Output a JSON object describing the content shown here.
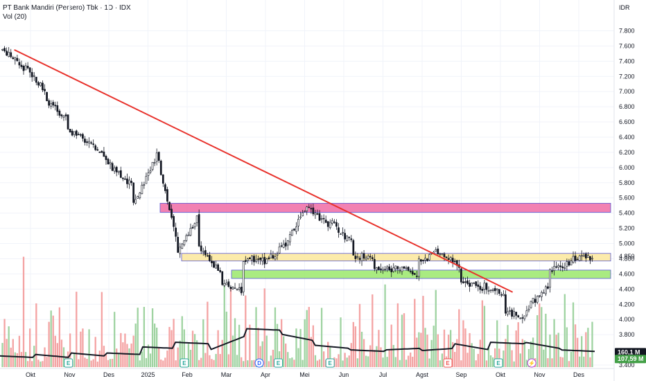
{
  "header": {
    "title": "PT Bank Mandiri (Persero) Tbk · 1D · IDX",
    "volume_label": "Vol (20)",
    "currency": "IDR"
  },
  "chart_data": {
    "type": "candlestick",
    "ylim": [
      3400,
      7950
    ],
    "y_ticks": [
      7800,
      7600,
      7400,
      7200,
      7000,
      6800,
      6600,
      6400,
      6200,
      6000,
      5800,
      5600,
      5400,
      5200,
      5000,
      4800,
      4600,
      4400,
      4200,
      4000,
      3800,
      3400
    ],
    "x_ticks": [
      "Okt",
      "Nov",
      "Des",
      "2025",
      "Feb",
      "Mar",
      "Apr",
      "Mei",
      "Jun",
      "Jul",
      "Agst",
      "Sep",
      "Okt",
      "Nov",
      "Des"
    ],
    "price_keypoints": [
      [
        7550,
        7300
      ],
      [
        7350,
        7000
      ],
      [
        6850,
        6650
      ],
      [
        6500,
        6300
      ],
      [
        6300,
        6050
      ],
      [
        6000,
        5750
      ],
      [
        5550,
        6100
      ],
      [
        6250,
        5000
      ],
      [
        4850,
        5400
      ],
      [
        4950,
        4600
      ],
      [
        4500,
        4350
      ],
      [
        4750,
        4850
      ],
      [
        4750,
        5000
      ],
      [
        5000,
        5550
      ],
      [
        5500,
        5200
      ],
      [
        5300,
        5000
      ],
      [
        4850,
        4800
      ],
      [
        4700,
        4650
      ],
      [
        4700,
        4600
      ],
      [
        4750,
        4900
      ],
      [
        4850,
        4700
      ],
      [
        4500,
        4400
      ],
      [
        4450,
        4350
      ],
      [
        4100,
        4050
      ],
      [
        4150,
        4450
      ],
      [
        4650,
        4750
      ],
      [
        4800,
        4830
      ]
    ],
    "volume_ma_keypoints": [
      [
        3520,
        3500
      ],
      [
        3540,
        3500
      ],
      [
        3560,
        3520
      ],
      [
        3560,
        3540
      ],
      [
        3640,
        3620
      ],
      [
        3700,
        3680
      ],
      [
        3600,
        3780
      ],
      [
        3880,
        3860
      ],
      [
        3810,
        3720
      ],
      [
        3660,
        3620
      ],
      [
        3600,
        3580
      ],
      [
        3600,
        3620
      ],
      [
        3590,
        3620
      ],
      [
        3680,
        3600
      ],
      [
        3700,
        3680
      ],
      [
        3700,
        3620
      ],
      [
        3600,
        3580
      ]
    ],
    "trendline": {
      "from": [
        0.024,
        7550
      ],
      "to": [
        0.862,
        4360
      ],
      "color": "#e8312b"
    },
    "zones": [
      {
        "name": "resistance",
        "y_top": 5530,
        "y_bottom": 5410,
        "color": "#f06ba4"
      },
      {
        "name": "pivot",
        "y_top": 4870,
        "y_bottom": 4770,
        "color": "#fbe89b"
      },
      {
        "name": "support",
        "y_top": 4650,
        "y_bottom": 4540,
        "color": "#9be86b"
      }
    ],
    "last_price": {
      "value": "4.850",
      "y": 4830
    },
    "volume_labels": [
      {
        "text": "160,1 M",
        "y": 3570,
        "color": "#131722"
      },
      {
        "text": "107,59 M",
        "y": 3480,
        "color": "#43a047"
      }
    ],
    "events": [
      {
        "t": 0.115,
        "label": "E"
      },
      {
        "t": 0.31,
        "label": "E"
      },
      {
        "t": 0.436,
        "label": "D"
      },
      {
        "t": 0.468,
        "label": "E"
      },
      {
        "t": 0.555,
        "label": "E"
      },
      {
        "t": 0.753,
        "label": "E"
      },
      {
        "t": 0.838,
        "label": "E"
      },
      {
        "t": 0.894,
        "label": "⚡"
      }
    ],
    "colors": {
      "up": "#26a69a",
      "down": "#ef5350",
      "candle": "#131722",
      "vol_up": "#9fd3a1",
      "vol_down": "#f4a3a3",
      "vol_ma": "#131722"
    }
  }
}
